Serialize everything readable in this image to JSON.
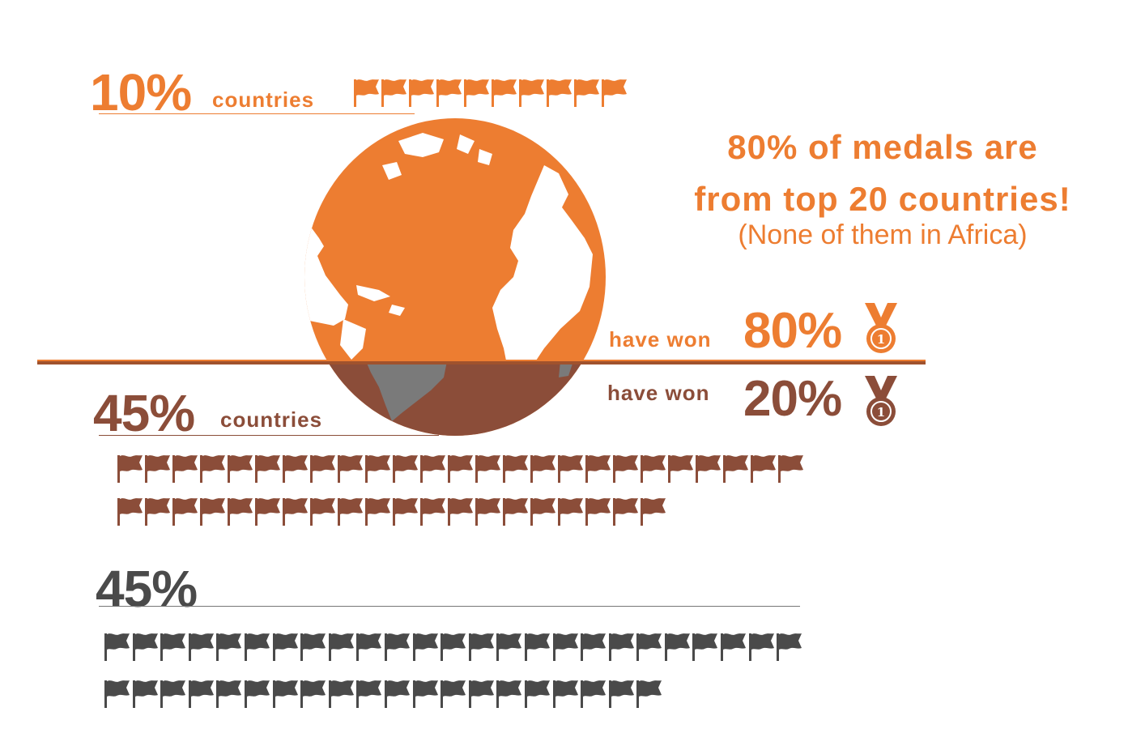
{
  "groups": {
    "top": {
      "percent": "10%",
      "label": "countries"
    },
    "middle": {
      "percent": "45%",
      "label": "countries"
    },
    "bottom": {
      "percent": "45%"
    }
  },
  "headline": {
    "line1": "80% of medals are",
    "line2": "from top 20 countries!",
    "note": "(None of them in Africa)"
  },
  "medal_share": {
    "top": {
      "label": "have won",
      "percent": "80%"
    },
    "bottom": {
      "label": "have won",
      "percent": "20%"
    }
  },
  "flag_rows": [
    {
      "group": "top",
      "count": 10,
      "color": "#ed7d31"
    },
    {
      "group": "middle",
      "count": 25,
      "color": "#8b4d39"
    },
    {
      "group": "middle",
      "count": 20,
      "color": "#8b4d39"
    },
    {
      "group": "bottom",
      "count": 25,
      "color": "#4a4a4a"
    },
    {
      "group": "bottom",
      "count": 20,
      "color": "#4a4a4a"
    }
  ],
  "colors": {
    "orange": "#ed7d31",
    "brown": "#8b4d39",
    "gray": "#4a4a4a"
  },
  "icons": {
    "flag": "flag-icon",
    "medal": "medal-icon",
    "globe": "globe-icon"
  }
}
